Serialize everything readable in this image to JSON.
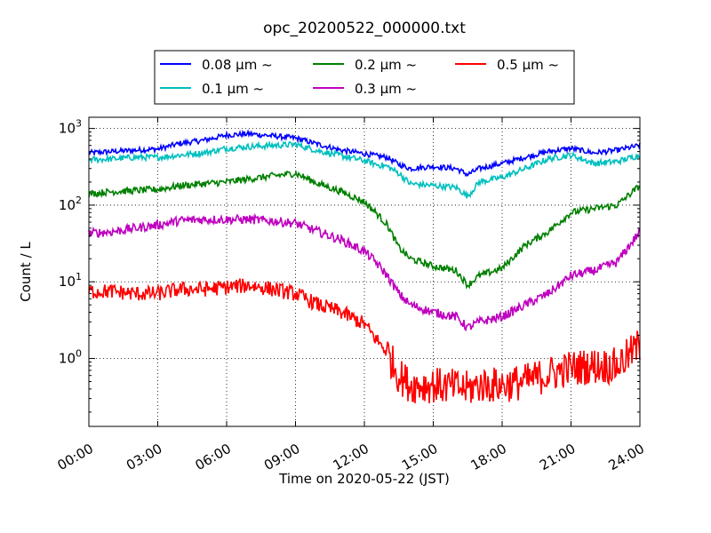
{
  "chart_data": {
    "type": "line",
    "title": "opc_20200522_000000.txt",
    "xlabel": "Time on 2020-05-22 (JST)",
    "ylabel": "Count / L",
    "yscale": "log",
    "xlim": [
      "2020-05-22 00:00",
      "2020-05-23 00:00"
    ],
    "ylim": [
      0.13,
      1400
    ],
    "grid": true,
    "legend_position": "top",
    "x_tick_labels": [
      "00:00",
      "03:00",
      "06:00",
      "09:00",
      "12:00",
      "15:00",
      "18:00",
      "21:00",
      "24:00"
    ],
    "y_tick_labels": [
      {
        "value": 1,
        "base": "10",
        "exp": "0"
      },
      {
        "value": 10,
        "base": "10",
        "exp": "1"
      },
      {
        "value": 100,
        "base": "10",
        "exp": "2"
      },
      {
        "value": 1000,
        "base": "10",
        "exp": "3"
      }
    ],
    "x_hours": [
      0,
      1,
      2,
      3,
      4,
      5,
      6,
      7,
      8,
      9,
      10,
      11,
      12,
      12.5,
      13,
      13.5,
      14,
      15,
      16,
      16.5,
      17,
      18,
      19,
      20,
      21,
      22,
      23,
      24
    ],
    "series": [
      {
        "name": "0.08 μm ~",
        "color": "#0000ff",
        "values": [
          480,
          500,
          520,
          540,
          640,
          700,
          820,
          850,
          800,
          750,
          620,
          520,
          470,
          440,
          420,
          340,
          300,
          320,
          300,
          250,
          300,
          350,
          420,
          500,
          550,
          480,
          520,
          600
        ]
      },
      {
        "name": "0.1 μm ~",
        "color": "#00bfbf",
        "values": [
          390,
          400,
          420,
          420,
          450,
          480,
          550,
          580,
          600,
          620,
          510,
          440,
          380,
          340,
          320,
          260,
          190,
          180,
          170,
          130,
          200,
          230,
          300,
          400,
          450,
          350,
          370,
          450
        ]
      },
      {
        "name": "0.2 μm ~",
        "color": "#008000",
        "values": [
          140,
          150,
          155,
          160,
          180,
          190,
          200,
          220,
          240,
          260,
          190,
          150,
          110,
          80,
          55,
          28,
          20,
          16,
          14,
          9,
          12,
          15,
          30,
          45,
          80,
          90,
          100,
          180
        ]
      },
      {
        "name": "0.3 μm ~",
        "color": "#bf00bf",
        "values": [
          43,
          45,
          50,
          55,
          63,
          65,
          65,
          65,
          62,
          58,
          45,
          35,
          25,
          18,
          12,
          7,
          5,
          4,
          3.5,
          2.5,
          3,
          3.5,
          5,
          7,
          12,
          14,
          18,
          45
        ]
      },
      {
        "name": "0.5 μm ~",
        "color": "#ff0000",
        "values": [
          7.5,
          7.5,
          7,
          7,
          8,
          8,
          8.5,
          9,
          8,
          7,
          5,
          4,
          2.8,
          1.8,
          1.2,
          0.6,
          0.45,
          0.45,
          0.42,
          0.4,
          0.45,
          0.45,
          0.5,
          0.62,
          0.75,
          0.8,
          0.8,
          1.5
        ]
      }
    ]
  }
}
